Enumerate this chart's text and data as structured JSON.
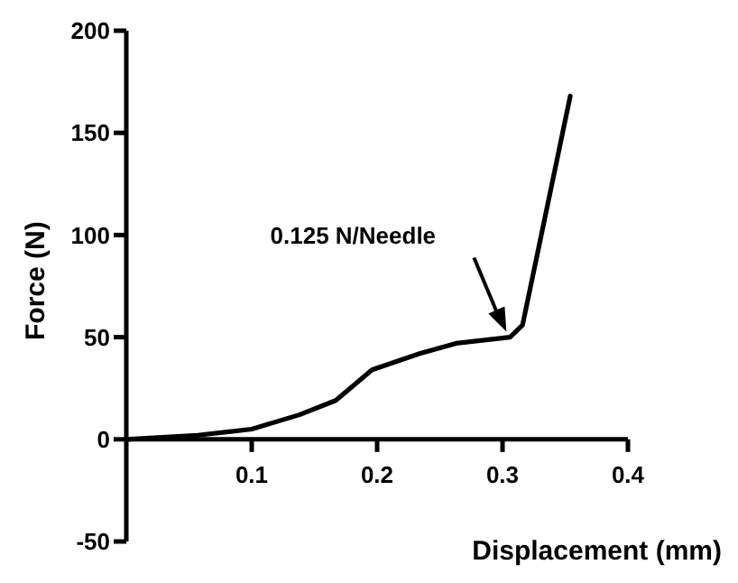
{
  "chart_data": {
    "type": "line",
    "xlabel": "Displacement (mm)",
    "ylabel": "Force (N)",
    "x": [
      0,
      0.057,
      0.1,
      0.138,
      0.167,
      0.196,
      0.234,
      0.263,
      0.306,
      0.316,
      0.354
    ],
    "series": [
      {
        "color": "#000000",
        "values": [
          0,
          2,
          5,
          12,
          19,
          34,
          42,
          47,
          50,
          56,
          168
        ]
      }
    ],
    "xlim": [
      0,
      0.4
    ],
    "xticks": [
      0.1,
      0.2,
      0.3,
      0.4
    ],
    "ylim": [
      -50,
      200
    ],
    "yticks": [
      -50,
      0,
      50,
      100,
      150,
      200
    ],
    "marker": "none",
    "annotations": [
      "0.125 N/Needle"
    ]
  }
}
